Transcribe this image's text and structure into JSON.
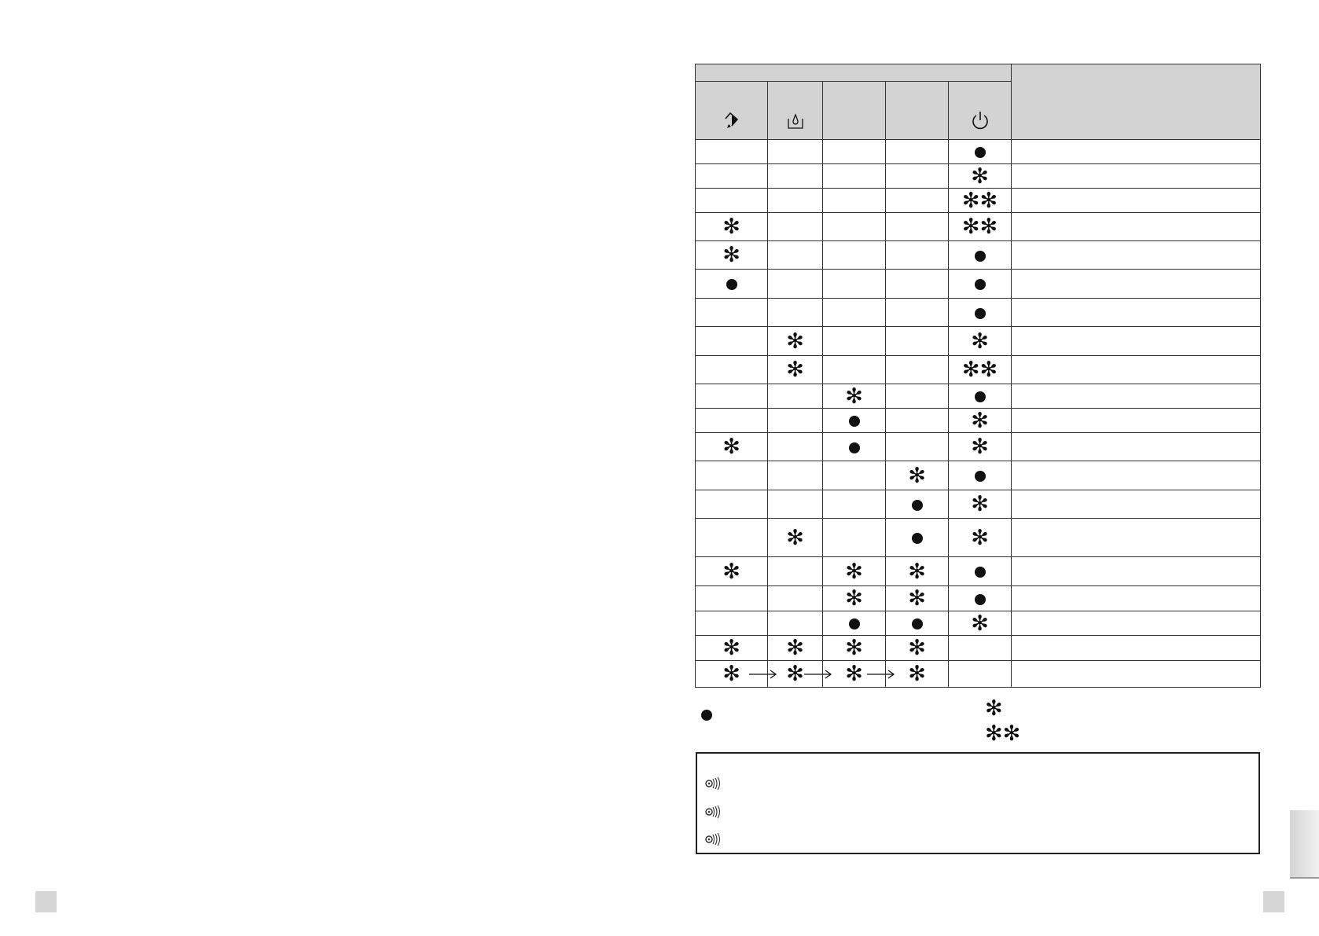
{
  "table": {
    "header_icons": [
      "eraser-icon",
      "water-tank-icon",
      "",
      "",
      "power-icon",
      ""
    ],
    "rows": [
      [
        "",
        "",
        "",
        "",
        "dot"
      ],
      [
        "",
        "",
        "",
        "",
        "star"
      ],
      [
        "",
        "",
        "",
        "",
        "star2"
      ],
      [
        "star",
        "",
        "",
        "",
        "star2"
      ],
      [
        "star",
        "",
        "",
        "",
        "dot"
      ],
      [
        "dot",
        "",
        "",
        "",
        "dot"
      ],
      [
        "",
        "",
        "",
        "",
        "dot"
      ],
      [
        "",
        "star",
        "",
        "",
        "star"
      ],
      [
        "",
        "star",
        "",
        "",
        "star2"
      ],
      [
        "",
        "",
        "star",
        "",
        "dot"
      ],
      [
        "",
        "",
        "dot",
        "",
        "star"
      ],
      [
        "star",
        "",
        "dot",
        "",
        "star"
      ],
      [
        "",
        "",
        "",
        "star",
        "dot"
      ],
      [
        "",
        "",
        "",
        "dot",
        "star"
      ],
      [
        "",
        "star",
        "",
        "dot",
        "star"
      ],
      [
        "star",
        "",
        "star",
        "star",
        "dot"
      ],
      [
        "",
        "",
        "star",
        "star",
        "dot"
      ],
      [
        "",
        "",
        "dot",
        "dot",
        "star"
      ],
      [
        "star",
        "star",
        "star",
        "star",
        ""
      ],
      [
        "star",
        "arrow-star",
        "arrow-star",
        "arrow-star",
        ""
      ]
    ]
  },
  "legend": {
    "symbols": [
      "dot",
      "star",
      "star2"
    ]
  },
  "sound_box": {
    "icons": [
      "speaker-icon",
      "speaker-icon",
      "speaker-icon"
    ]
  },
  "colors": {
    "header_bg": "#d3d3d3",
    "symbol": "#111111",
    "page_marker": "#d6d6d6"
  }
}
